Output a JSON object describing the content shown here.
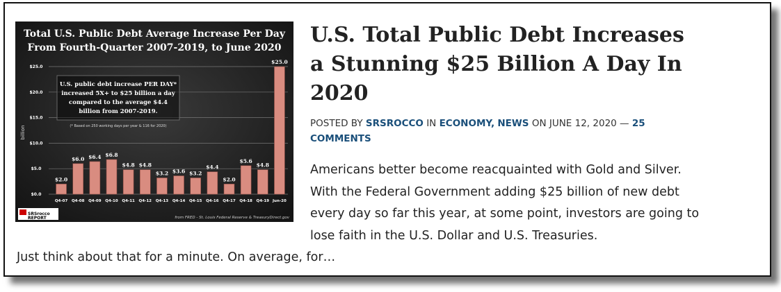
{
  "post": {
    "title": "U.S. Total Public Debt Increases a Stunning $25 Billion A Day In 2020",
    "meta": {
      "posted_by": "Posted by",
      "author": "SRSrocco",
      "in": "in",
      "category1": "Economy",
      "comma": ",",
      "category2": "News",
      "on": "on",
      "date": "June 12, 2020",
      "dash": "—",
      "comments": "25 Comments"
    },
    "excerpt_main": "Americans better become reacquainted with Gold and Silver.  With the Federal Government adding $25 billion of new debt every day so far this year, at some point, investors are going to lose faith in the U.S. Dollar and U.S. Treasuries.",
    "excerpt_tail": "Just think about that for a minute.  On average, for…"
  },
  "chart_data": {
    "type": "bar",
    "title": "Total U.S. Public Debt Average Increase Per Day From Fourth-Quarter 2007-2019, to June 2020",
    "title_line1": "Total U.S. Public Debt Average Increase Per Day",
    "title_line2": "From Fourth-Quarter 2007-2019, to June 2020",
    "ylabel": "billion",
    "ylim": [
      0,
      25
    ],
    "yticks": [
      "$0.0",
      "$5.0",
      "$10.0",
      "$15.0",
      "$20.0",
      "$25.0"
    ],
    "categories": [
      "Q4-07",
      "Q4-08",
      "Q4-09",
      "Q4-10",
      "Q4-11",
      "Q4-12",
      "Q4-13",
      "Q4-14",
      "Q4-15",
      "Q4-16",
      "Q4-17",
      "Q4-18",
      "Q4-19",
      "Jun-20"
    ],
    "values": [
      2.0,
      6.0,
      6.4,
      6.8,
      4.8,
      4.8,
      3.2,
      3.6,
      3.2,
      4.4,
      2.0,
      5.6,
      4.8,
      25.0
    ],
    "labels": [
      "$2.0",
      "$6.0",
      "$6.4",
      "$6.8",
      "$4.8",
      "$4.8",
      "$3.2",
      "$3.6",
      "$3.2",
      "$4.4",
      "$2.0",
      "$5.6",
      "$4.8",
      "$25.0"
    ],
    "annotation": [
      "U.S. public debt increase PER DAY*",
      "increased 5X+ to $25 billion a day",
      "compared to the average $4.4",
      "billion from 2007-2019."
    ],
    "footnote": "(* Based on 250 working days per year & 116 for 2020)",
    "source": "from FRED - St. Louis Federal Reserve & TreasuryDirect.gov",
    "logo_text": "SRSrocco REPORT",
    "bar_color": "#d98c80",
    "grid": true
  }
}
